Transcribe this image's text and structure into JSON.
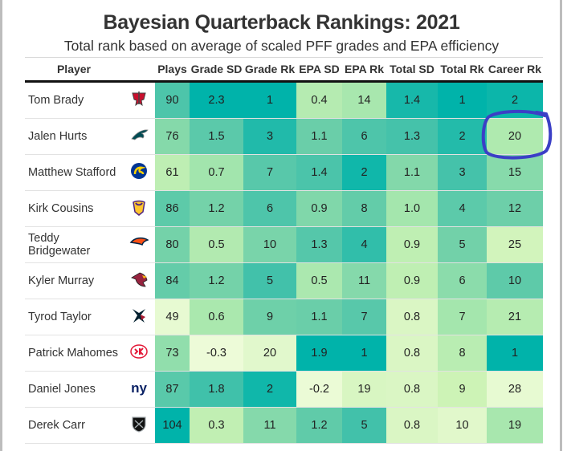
{
  "chart_data": {
    "type": "table",
    "title": "Bayesian Quarterback Rankings: 2021",
    "subtitle": "Total rank based on average of scaled PFF grades and EPA efficiency",
    "columns": [
      "Player",
      "",
      "Plays",
      "Grade SD",
      "Grade Rk",
      "EPA SD",
      "EPA Rk",
      "Total SD",
      "Total Rk",
      "Career Rk"
    ],
    "rows": [
      {
        "player": "Tom Brady",
        "team": "buccaneers",
        "values": [
          "90",
          "2.3",
          "1",
          "0.4",
          "14",
          "1.4",
          "1",
          "2"
        ]
      },
      {
        "player": "Jalen Hurts",
        "team": "eagles",
        "values": [
          "76",
          "1.5",
          "3",
          "1.1",
          "6",
          "1.3",
          "2",
          "20"
        ]
      },
      {
        "player": "Matthew Stafford",
        "team": "rams",
        "values": [
          "61",
          "0.7",
          "7",
          "1.4",
          "2",
          "1.1",
          "3",
          "15"
        ]
      },
      {
        "player": "Kirk Cousins",
        "team": "vikings",
        "values": [
          "86",
          "1.2",
          "6",
          "0.9",
          "8",
          "1.0",
          "4",
          "12"
        ]
      },
      {
        "player": "Teddy Bridgewater",
        "team": "broncos",
        "values": [
          "80",
          "0.5",
          "10",
          "1.3",
          "4",
          "0.9",
          "5",
          "25"
        ]
      },
      {
        "player": "Kyler Murray",
        "team": "cardinals",
        "values": [
          "84",
          "1.2",
          "5",
          "0.5",
          "11",
          "0.9",
          "6",
          "10"
        ]
      },
      {
        "player": "Tyrod Taylor",
        "team": "texans",
        "values": [
          "49",
          "0.6",
          "9",
          "1.1",
          "7",
          "0.8",
          "7",
          "21"
        ]
      },
      {
        "player": "Patrick Mahomes",
        "team": "chiefs",
        "values": [
          "73",
          "-0.3",
          "20",
          "1.9",
          "1",
          "0.8",
          "8",
          "1"
        ]
      },
      {
        "player": "Daniel Jones",
        "team": "giants",
        "values": [
          "87",
          "1.8",
          "2",
          "-0.2",
          "19",
          "0.8",
          "9",
          "28"
        ]
      },
      {
        "player": "Derek Carr",
        "team": "raiders",
        "values": [
          "104",
          "0.3",
          "11",
          "1.2",
          "5",
          "0.8",
          "10",
          "19"
        ]
      }
    ],
    "color_scale": [
      "#f4fde0",
      "#cdf3b6",
      "#a4e6ad",
      "#72d1a9",
      "#45c2aa",
      "#00b3aa"
    ],
    "highlight": {
      "row": 1,
      "column": "Career Rk",
      "color": "#3b3fc6"
    }
  }
}
